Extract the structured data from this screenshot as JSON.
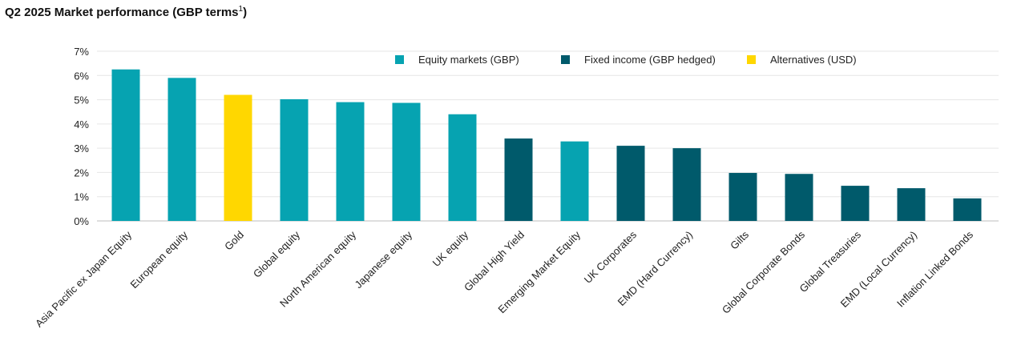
{
  "chart_data": {
    "type": "bar",
    "title": "Q2 2025 Market performance (GBP terms",
    "title_footnote": "1",
    "title_close": ")",
    "ylim": [
      0,
      7
    ],
    "yticks": [
      "0%",
      "1%",
      "2%",
      "3%",
      "4%",
      "5%",
      "6%",
      "7%"
    ],
    "grid": true,
    "legend_position": "top-center",
    "legend": [
      {
        "name": "Equity markets (GBP)",
        "color": "#06A3B1"
      },
      {
        "name": "Fixed income (GBP hedged)",
        "color": "#005A6B"
      },
      {
        "name": "Alternatives (USD)",
        "color": "#FFD700"
      }
    ],
    "categories": [
      "Asia Pacific ex Japan Equity",
      "European equity",
      "Gold",
      "Global equity",
      "North American equity",
      "Japanese equity",
      "UK equity",
      "Global High Yield",
      "Emerging Market Equity",
      "UK Corporates",
      "EMD (Hard Currency)",
      "Gilts",
      "Global Corporate Bonds",
      "Global Treasuries",
      "EMD (Local Currency)",
      "Inflation Linked Bonds"
    ],
    "values": [
      6.25,
      5.9,
      5.2,
      5.02,
      4.9,
      4.87,
      4.4,
      3.4,
      3.28,
      3.1,
      3.0,
      1.98,
      1.94,
      1.45,
      1.35,
      0.93
    ],
    "groups": [
      0,
      0,
      2,
      0,
      0,
      0,
      0,
      1,
      0,
      1,
      1,
      1,
      1,
      1,
      1,
      1
    ]
  }
}
